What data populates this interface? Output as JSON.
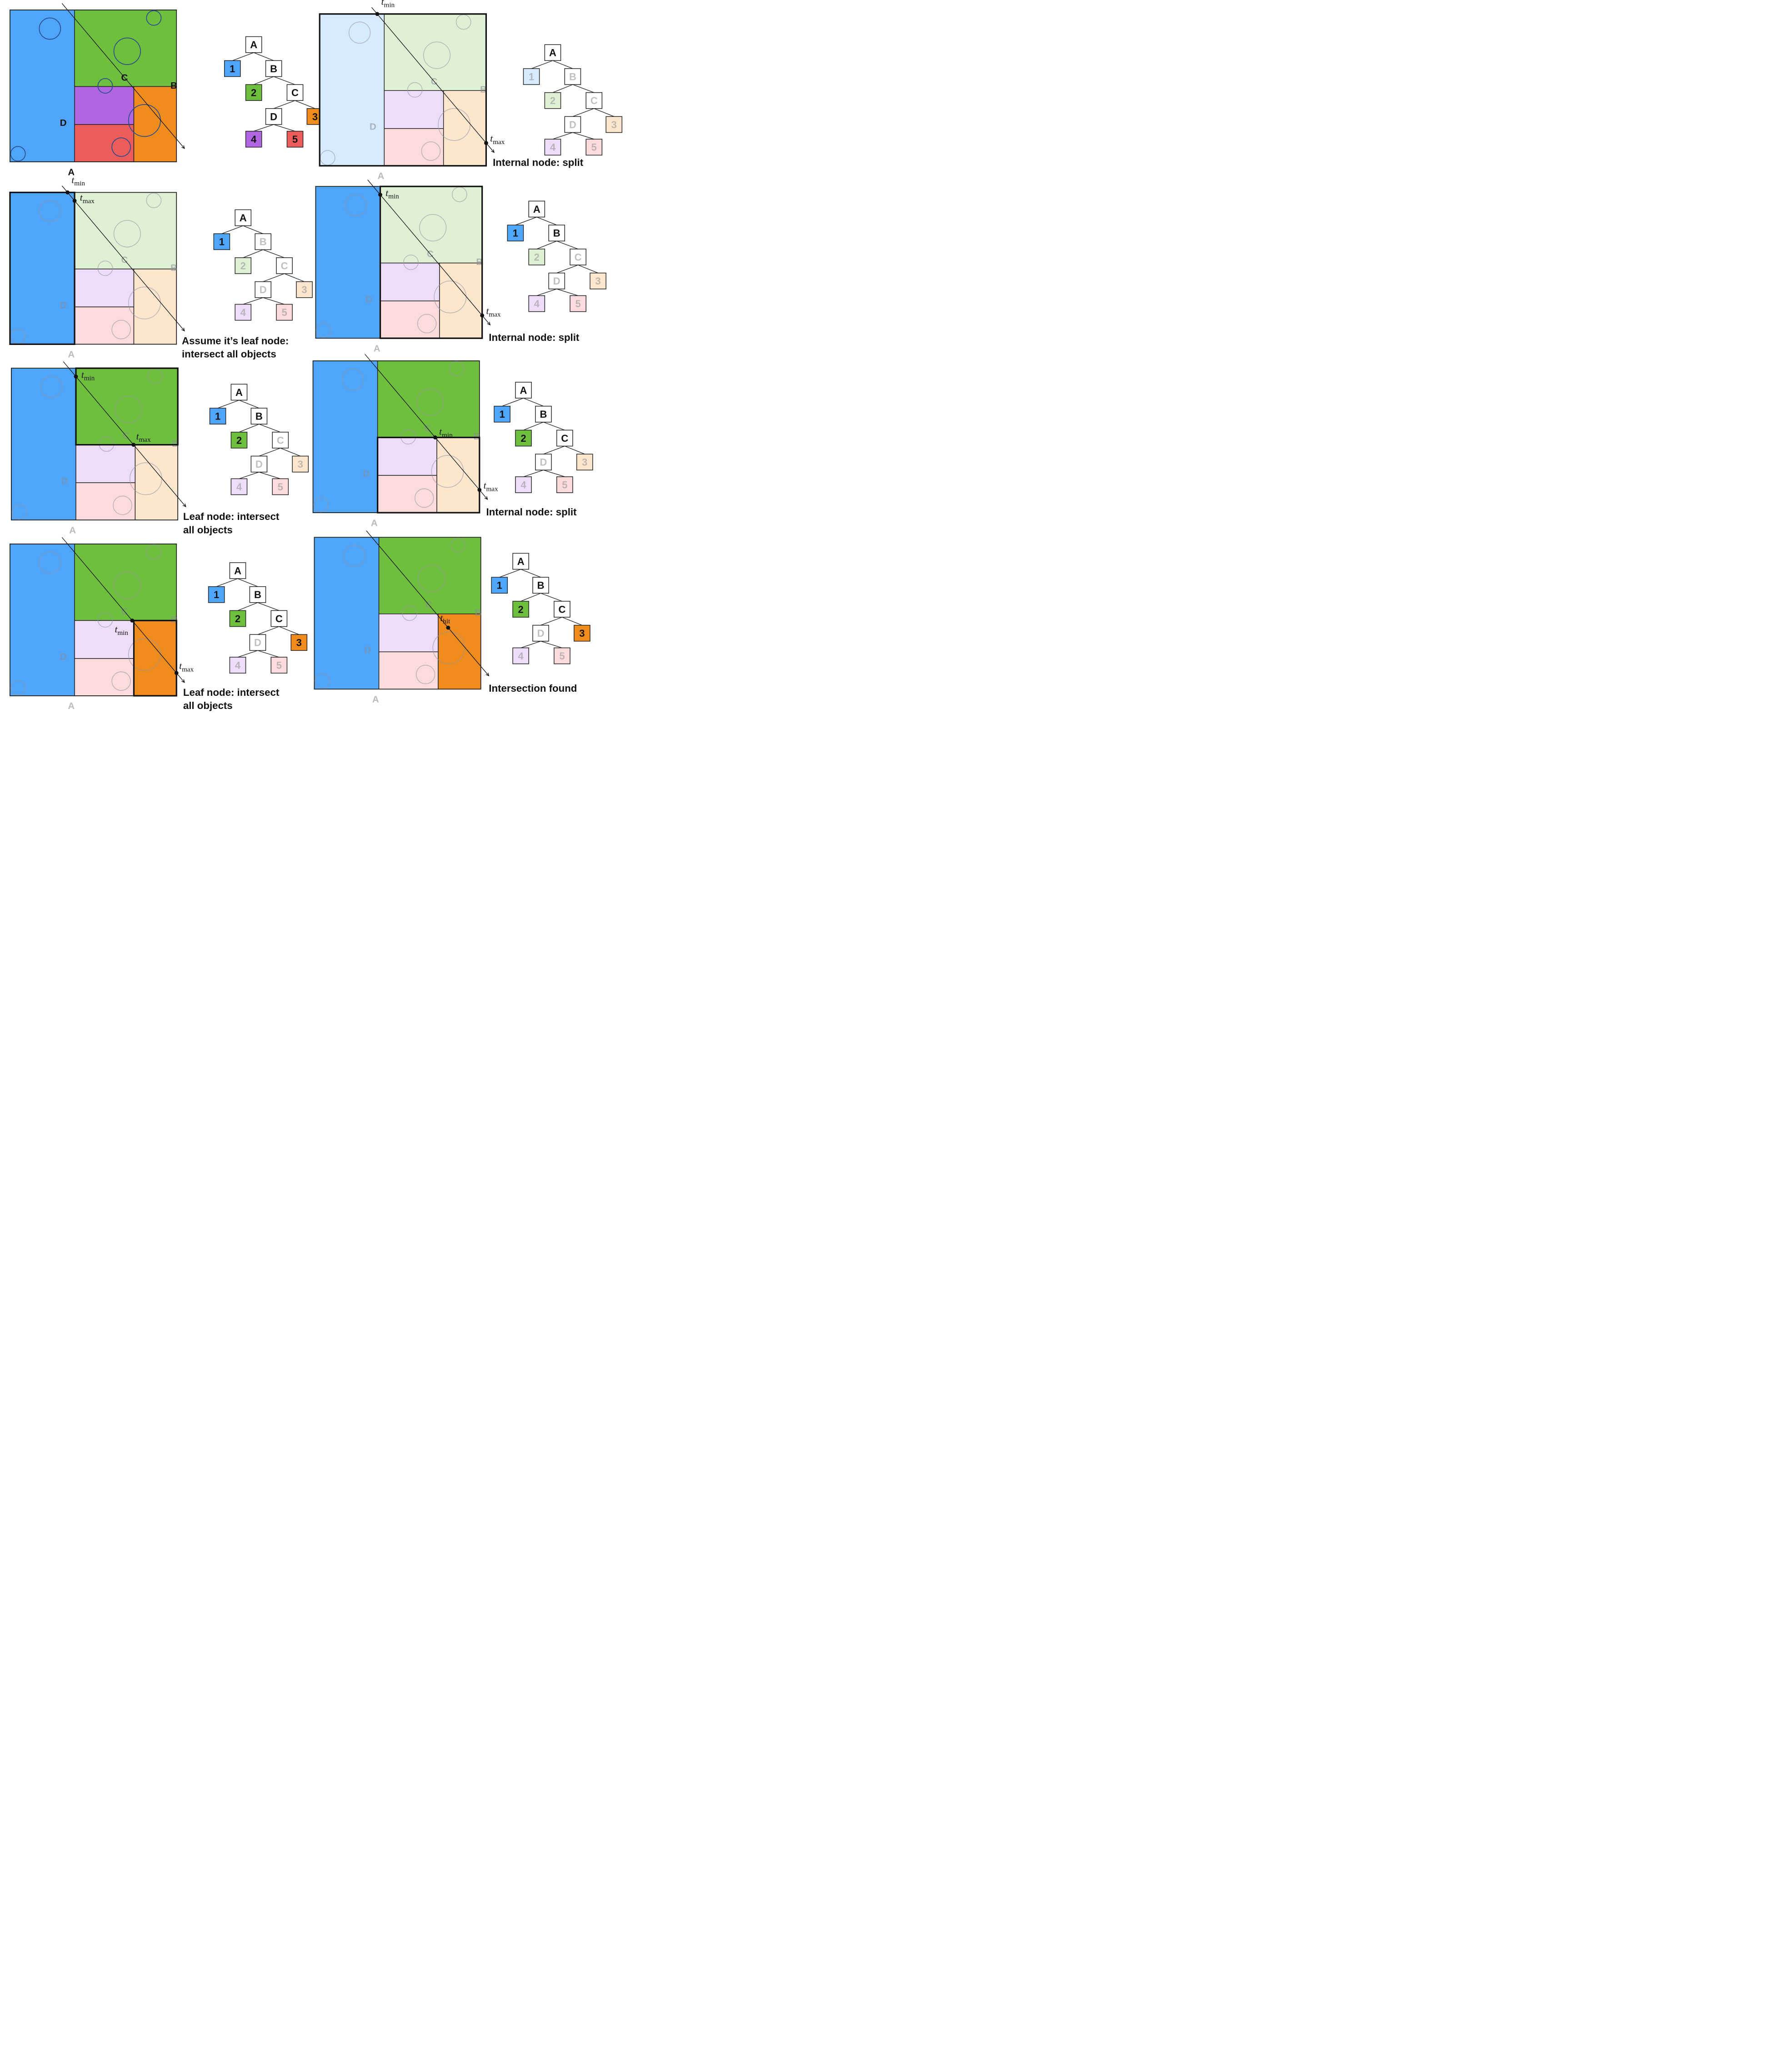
{
  "regions": {
    "1": {
      "label": "1",
      "color": "#4ea5fa"
    },
    "2": {
      "label": "2",
      "color": "#6fbf3f"
    },
    "3": {
      "label": "3",
      "color": "#f08c1c"
    },
    "4": {
      "label": "4",
      "color": "#b066e0"
    },
    "5": {
      "label": "5",
      "color": "#eb5c5a"
    }
  },
  "split_labels": {
    "A": "A",
    "B": "B",
    "C": "C",
    "D": "D"
  },
  "ray_labels": {
    "tmin": "min",
    "tmax": "max",
    "thit": "hit",
    "t": "t"
  },
  "panels": [
    {
      "id": "p1",
      "caption": [],
      "active_regions": [
        "1",
        "2",
        "3",
        "4",
        "5"
      ],
      "active_nodes": [
        "A",
        "B",
        "C",
        "D"
      ],
      "box": null,
      "markers": []
    },
    {
      "id": "p2",
      "caption": [
        "Internal node: split"
      ],
      "active_regions": [],
      "active_nodes": [
        "A"
      ],
      "box": "A",
      "markers": [
        "tmin",
        "tmax"
      ]
    },
    {
      "id": "p3",
      "caption": [
        "Assume it’s leaf node:",
        "intersect all objects"
      ],
      "active_regions": [
        "1"
      ],
      "active_nodes": [
        "A"
      ],
      "box": "1",
      "markers": [
        "tmin",
        "tmax"
      ]
    },
    {
      "id": "p4",
      "caption": [
        "Internal node: split"
      ],
      "active_regions": [
        "1"
      ],
      "active_nodes": [
        "A",
        "B"
      ],
      "box": "B",
      "markers": [
        "tmin",
        "tmax"
      ]
    },
    {
      "id": "p5",
      "caption": [
        "Leaf node: intersect",
        "all objects"
      ],
      "active_regions": [
        "1",
        "2"
      ],
      "active_nodes": [
        "A",
        "B"
      ],
      "box": "2",
      "markers": [
        "tmin",
        "tmax"
      ]
    },
    {
      "id": "p6",
      "caption": [
        "Internal node: split"
      ],
      "active_regions": [
        "1",
        "2"
      ],
      "active_nodes": [
        "A",
        "B",
        "C"
      ],
      "box": "C",
      "markers": [
        "tmin",
        "tmax"
      ]
    },
    {
      "id": "p7",
      "caption": [
        "Leaf node: intersect",
        "all objects"
      ],
      "active_regions": [
        "1",
        "2",
        "3"
      ],
      "active_nodes": [
        "A",
        "B",
        "C"
      ],
      "box": "3",
      "markers": [
        "tmin",
        "tmax"
      ]
    },
    {
      "id": "p8",
      "caption": [
        "Intersection found"
      ],
      "active_regions": [
        "1",
        "2",
        "3"
      ],
      "active_nodes": [
        "A",
        "B",
        "C"
      ],
      "box": null,
      "markers": [
        "thit"
      ]
    }
  ]
}
